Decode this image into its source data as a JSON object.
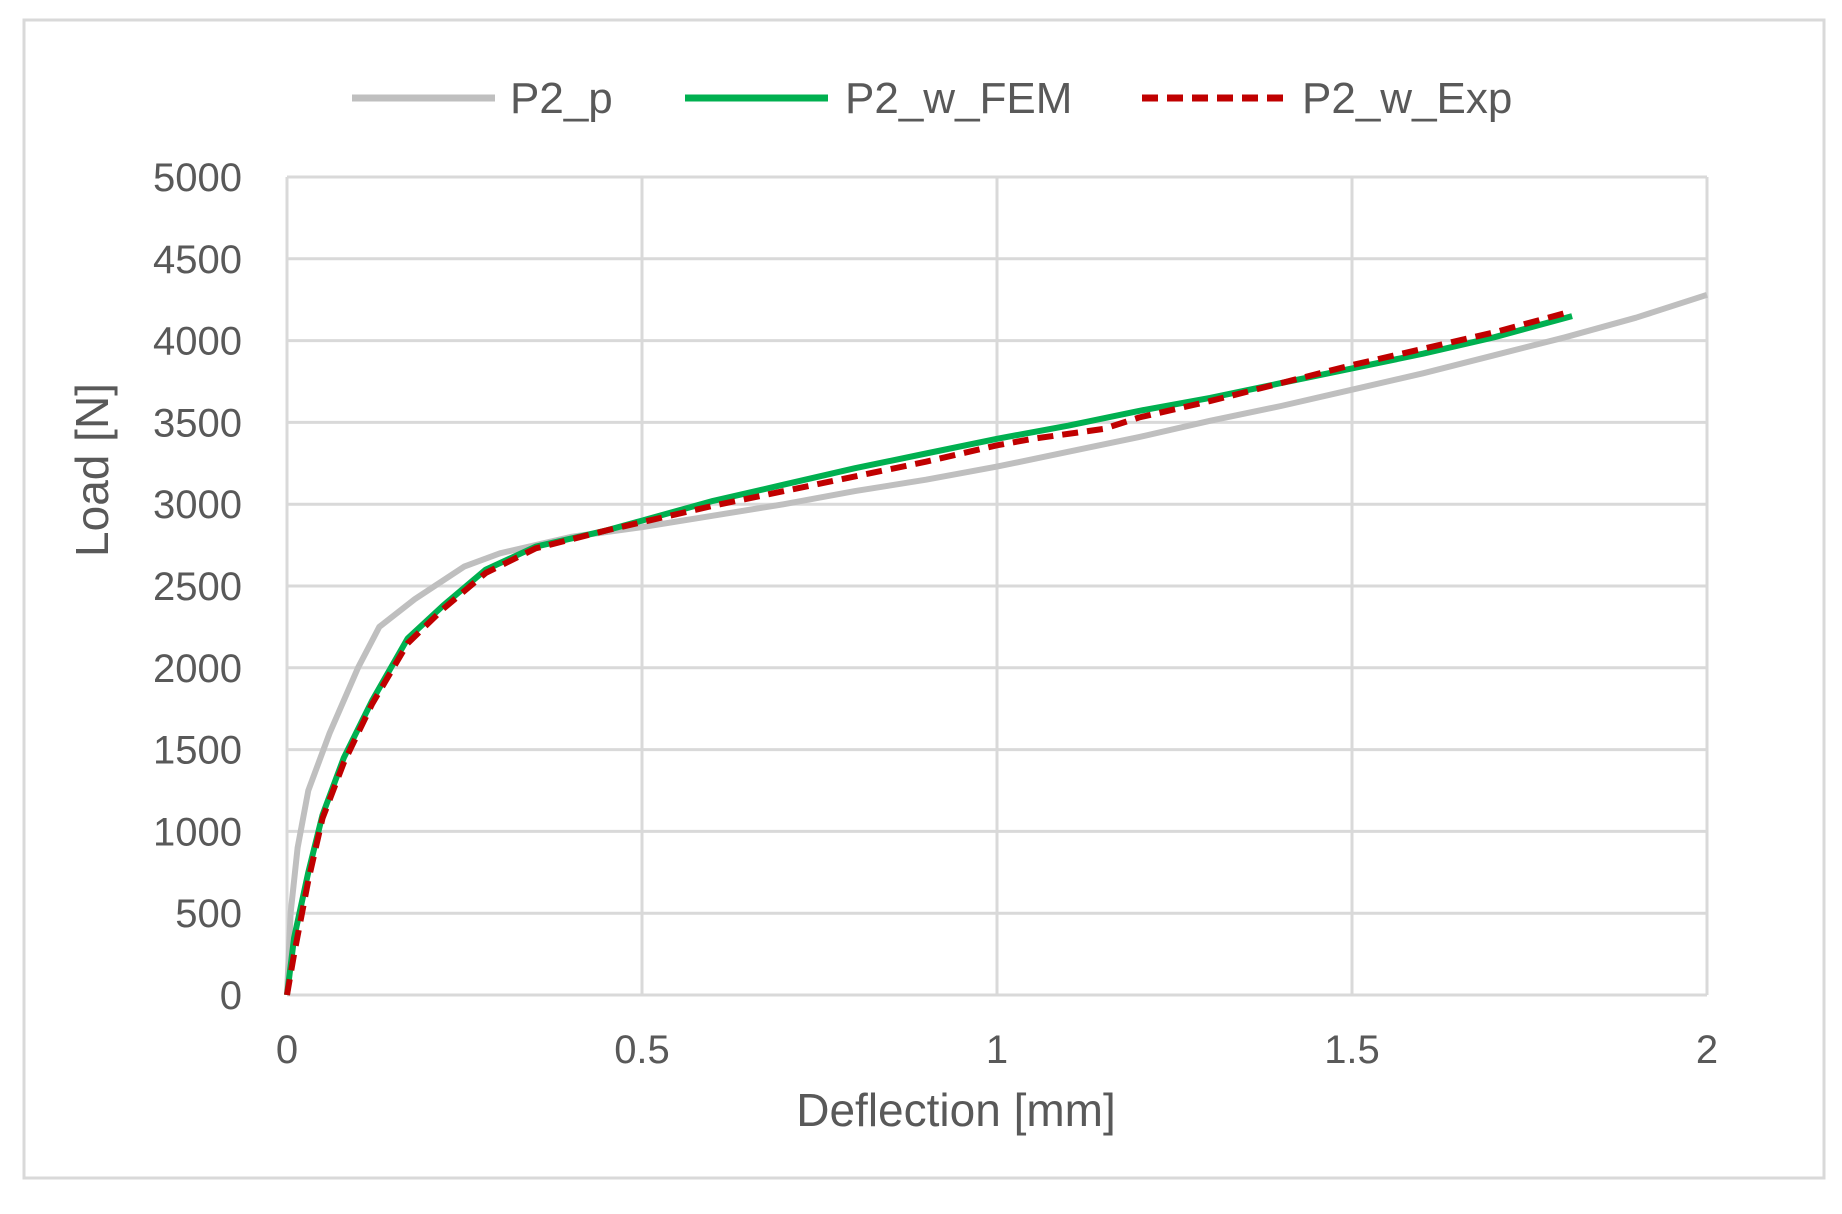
{
  "chart_data": {
    "type": "line",
    "xlabel": "Deflection [mm]",
    "ylabel": "Load [N]",
    "xlim": [
      0,
      2
    ],
    "ylim": [
      0,
      5000
    ],
    "x_ticks": [
      0,
      0.5,
      1,
      1.5,
      2
    ],
    "x_tick_labels": [
      "0",
      "0.5",
      "1",
      "1.5",
      "2"
    ],
    "y_ticks": [
      0,
      500,
      1000,
      1500,
      2000,
      2500,
      3000,
      3500,
      4000,
      4500,
      5000
    ],
    "y_tick_labels": [
      "0",
      "500",
      "1000",
      "1500",
      "2000",
      "2500",
      "3000",
      "3500",
      "4000",
      "4500",
      "5000"
    ],
    "grid": true,
    "legend_position": "top",
    "series": [
      {
        "name": "P2_p",
        "color": "#bfbfbf",
        "style": "solid",
        "points": [
          [
            0,
            0
          ],
          [
            0.005,
            500
          ],
          [
            0.015,
            900
          ],
          [
            0.03,
            1250
          ],
          [
            0.06,
            1600
          ],
          [
            0.1,
            2000
          ],
          [
            0.13,
            2250
          ],
          [
            0.18,
            2420
          ],
          [
            0.25,
            2620
          ],
          [
            0.3,
            2700
          ],
          [
            0.4,
            2800
          ],
          [
            0.5,
            2860
          ],
          [
            0.6,
            2930
          ],
          [
            0.7,
            3000
          ],
          [
            0.8,
            3080
          ],
          [
            0.9,
            3150
          ],
          [
            1.0,
            3230
          ],
          [
            1.1,
            3320
          ],
          [
            1.2,
            3410
          ],
          [
            1.3,
            3510
          ],
          [
            1.4,
            3600
          ],
          [
            1.5,
            3700
          ],
          [
            1.6,
            3800
          ],
          [
            1.7,
            3910
          ],
          [
            1.8,
            4020
          ],
          [
            1.9,
            4140
          ],
          [
            2.0,
            4280
          ]
        ]
      },
      {
        "name": "P2_w_FEM",
        "color": "#00b050",
        "style": "solid",
        "points": [
          [
            0,
            0
          ],
          [
            0.01,
            350
          ],
          [
            0.03,
            750
          ],
          [
            0.05,
            1100
          ],
          [
            0.08,
            1450
          ],
          [
            0.12,
            1800
          ],
          [
            0.17,
            2180
          ],
          [
            0.22,
            2380
          ],
          [
            0.28,
            2600
          ],
          [
            0.35,
            2740
          ],
          [
            0.45,
            2840
          ],
          [
            0.5,
            2900
          ],
          [
            0.6,
            3020
          ],
          [
            0.7,
            3120
          ],
          [
            0.8,
            3220
          ],
          [
            0.9,
            3310
          ],
          [
            1.0,
            3400
          ],
          [
            1.1,
            3480
          ],
          [
            1.2,
            3570
          ],
          [
            1.3,
            3650
          ],
          [
            1.4,
            3740
          ],
          [
            1.5,
            3830
          ],
          [
            1.6,
            3920
          ],
          [
            1.7,
            4020
          ],
          [
            1.81,
            4150
          ]
        ]
      },
      {
        "name": "P2_w_Exp",
        "color": "#c00000",
        "style": "dashed",
        "points": [
          [
            0,
            0
          ],
          [
            0.01,
            250
          ],
          [
            0.03,
            700
          ],
          [
            0.05,
            1080
          ],
          [
            0.08,
            1420
          ],
          [
            0.12,
            1780
          ],
          [
            0.17,
            2150
          ],
          [
            0.22,
            2360
          ],
          [
            0.28,
            2580
          ],
          [
            0.35,
            2730
          ],
          [
            0.45,
            2840
          ],
          [
            0.5,
            2890
          ],
          [
            0.6,
            2990
          ],
          [
            0.7,
            3080
          ],
          [
            0.8,
            3170
          ],
          [
            0.9,
            3260
          ],
          [
            1.0,
            3360
          ],
          [
            1.05,
            3400
          ],
          [
            1.1,
            3430
          ],
          [
            1.15,
            3460
          ],
          [
            1.2,
            3530
          ],
          [
            1.3,
            3630
          ],
          [
            1.4,
            3740
          ],
          [
            1.5,
            3850
          ],
          [
            1.6,
            3950
          ],
          [
            1.7,
            4050
          ],
          [
            1.81,
            4180
          ]
        ]
      }
    ]
  }
}
